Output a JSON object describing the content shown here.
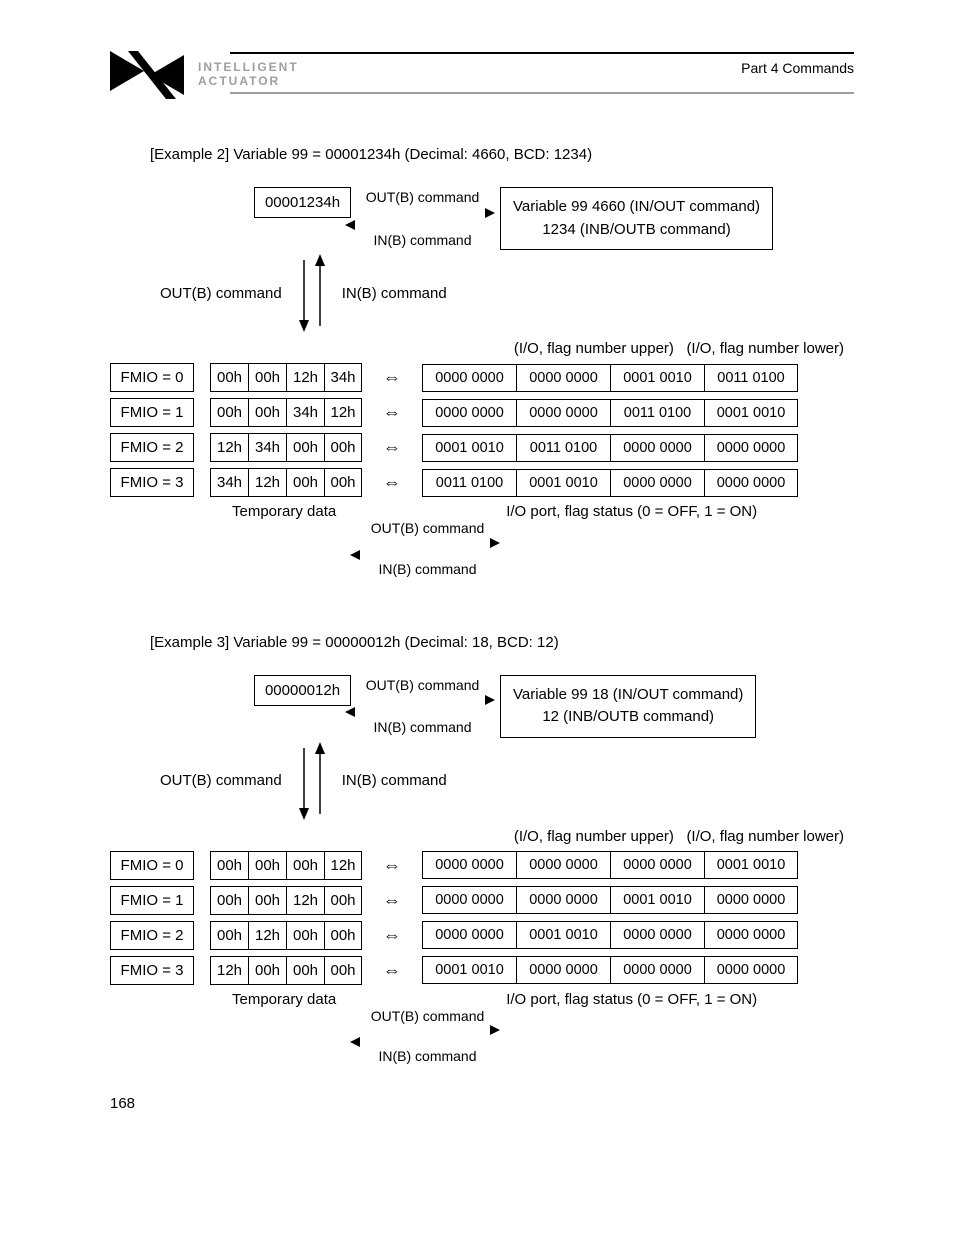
{
  "header": {
    "brand_line1": "INTELLIGENT",
    "brand_line2": "ACTUATOR",
    "part": "Part 4 Commands"
  },
  "page_number": "168",
  "labels": {
    "out_cmd": "OUT(B) command",
    "in_cmd": "IN(B) command",
    "io_upper": "(I/O, flag number upper)",
    "io_lower": "(I/O, flag number lower)",
    "temp_data": "Temporary data",
    "io_port": "I/O port, flag status (0 = OFF, 1 = ON)",
    "bidir": "⇔"
  },
  "ex2": {
    "title": "[Example 2]      Variable 99 = 00001234h (Decimal: 4660, BCD: 1234)",
    "hex": "00001234h",
    "var_line1": "Variable 99   4660 (IN/OUT command)",
    "var_line2": "1234 (INB/OUTB command)",
    "rows": [
      {
        "fmio": "FMIO = 0",
        "hex": [
          "00h",
          "00h",
          "12h",
          "34h"
        ],
        "bin": [
          "0000 0000",
          "0000 0000",
          "0001 0010",
          "0011 0100"
        ]
      },
      {
        "fmio": "FMIO = 1",
        "hex": [
          "00h",
          "00h",
          "34h",
          "12h"
        ],
        "bin": [
          "0000 0000",
          "0000 0000",
          "0011 0100",
          "0001 0010"
        ]
      },
      {
        "fmio": "FMIO = 2",
        "hex": [
          "12h",
          "34h",
          "00h",
          "00h"
        ],
        "bin": [
          "0001 0010",
          "0011 0100",
          "0000 0000",
          "0000 0000"
        ]
      },
      {
        "fmio": "FMIO = 3",
        "hex": [
          "34h",
          "12h",
          "00h",
          "00h"
        ],
        "bin": [
          "0011 0100",
          "0001 0010",
          "0000 0000",
          "0000 0000"
        ]
      }
    ]
  },
  "ex3": {
    "title": "[Example 3]      Variable 99 = 00000012h (Decimal: 18, BCD: 12)",
    "hex": "00000012h",
    "var_line1": "Variable 99  18 (IN/OUT command)",
    "var_line2": "12 (INB/OUTB command)",
    "rows": [
      {
        "fmio": "FMIO = 0",
        "hex": [
          "00h",
          "00h",
          "00h",
          "12h"
        ],
        "bin": [
          "0000 0000",
          "0000 0000",
          "0000 0000",
          "0001 0010"
        ]
      },
      {
        "fmio": "FMIO = 1",
        "hex": [
          "00h",
          "00h",
          "12h",
          "00h"
        ],
        "bin": [
          "0000 0000",
          "0000 0000",
          "0001 0010",
          "0000 0000"
        ]
      },
      {
        "fmio": "FMIO = 2",
        "hex": [
          "00h",
          "12h",
          "00h",
          "00h"
        ],
        "bin": [
          "0000 0000",
          "0001 0010",
          "0000 0000",
          "0000 0000"
        ]
      },
      {
        "fmio": "FMIO = 3",
        "hex": [
          "12h",
          "00h",
          "00h",
          "00h"
        ],
        "bin": [
          "0001 0010",
          "0000 0000",
          "0000 0000",
          "0000 0000"
        ]
      }
    ]
  }
}
